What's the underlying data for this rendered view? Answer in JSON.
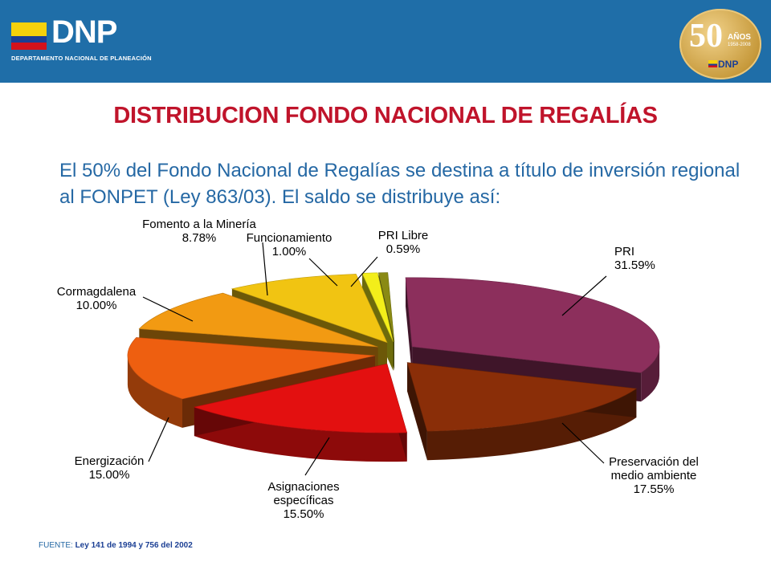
{
  "header": {
    "logo_text": "DNP",
    "logo_subtitle": "DEPARTAMENTO NACIONAL DE PLANEACIÓN",
    "seal_number": "50",
    "seal_text": "AÑOS",
    "seal_years": "1958-2008",
    "seal_logo": "DNP"
  },
  "title": "DISTRIBUCION FONDO NACIONAL DE REGALÍAS",
  "intro": "El 50% del Fondo Nacional de Regalías se destina a título de inversión regional al FONPET (Ley 863/03). El saldo se distribuye así:",
  "source": {
    "label": "FUENTE:",
    "text": "Ley 141 de 1994 y 756 del 2002"
  },
  "chart_data": {
    "type": "pie",
    "style": "3d-exploded",
    "slices": [
      {
        "label": "PRI",
        "value": 31.59,
        "pct": "31.59%",
        "color": "#8c2f5c"
      },
      {
        "label": "Preservación del medio ambiente",
        "value": 17.55,
        "pct": "17.55%",
        "color": "#8a2e08"
      },
      {
        "label": "Asignaciones específicas",
        "value": 15.5,
        "pct": "15.50%",
        "color": "#e31010"
      },
      {
        "label": "Energización",
        "value": 15.0,
        "pct": "15.00%",
        "color": "#ee5f10"
      },
      {
        "label": "Cormagdalena",
        "value": 10.0,
        "pct": "10.00%",
        "color": "#f29a12"
      },
      {
        "label": "Fomento a la Minería",
        "value": 8.78,
        "pct": "8.78%",
        "color": "#f1c412"
      },
      {
        "label": "Funcionamiento",
        "value": 1.0,
        "pct": "1.00%",
        "color": "#f3ee1a"
      },
      {
        "label": "PRI Libre",
        "value": 0.59,
        "pct": "0.59%",
        "color": "#8a8a14"
      }
    ]
  }
}
